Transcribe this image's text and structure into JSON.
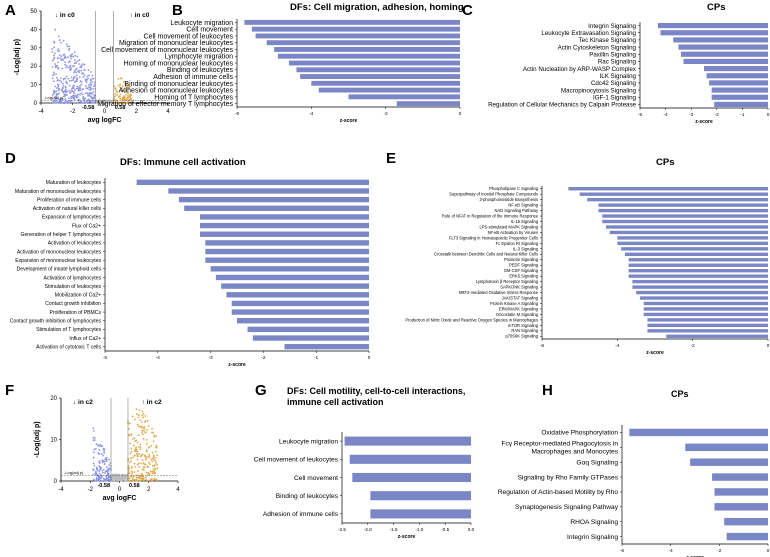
{
  "panel_letters": [
    "A",
    "B",
    "C",
    "D",
    "E",
    "F",
    "G",
    "H"
  ],
  "colors": {
    "bar": "#7b86c6",
    "down": "#8f97e6",
    "up": "#e0a94a",
    "grey": "#bbbbbb"
  },
  "chart_data": [
    {
      "panel": "A",
      "type": "scatter",
      "title": "",
      "xlabel": "avg logFC",
      "ylabel": "-Log(adj p)",
      "xlim": [
        -4,
        4
      ],
      "ylim": [
        0,
        50
      ],
      "xticks": [
        "-4",
        "-2",
        "0",
        "2",
        "4"
      ],
      "yticks": [
        "0",
        "10",
        "20",
        "30",
        "40",
        "50"
      ],
      "down_label": "↓ in c0",
      "up_label": "↑ in c0",
      "vlines": [
        -0.58,
        0.58
      ],
      "vline_labels": [
        "-0.58",
        "0.58"
      ],
      "hline": 1.3,
      "hline_label": "-Log(adj p)",
      "down_seed": 11,
      "up_seed": 23,
      "down_count": 380,
      "up_count": 90,
      "down_xrange": [
        -3.3,
        -0.58
      ],
      "up_xrange": [
        0.58,
        1.7
      ],
      "down_ymax": 42,
      "up_ymax": 14
    },
    {
      "panel": "B",
      "type": "bar",
      "title": "DFs: Cell migration, adhesion, homing",
      "xlabel": "z-score",
      "xlim": [
        -6,
        0
      ],
      "xticks": [
        "-6",
        "-4",
        "-2",
        "0"
      ],
      "categories": [
        "Leukocyte migration",
        "Cell movement",
        "Cell movement of leukocytes",
        "Migration of mononuclear leukocytes",
        "Cell movement of mononuclear leukocytes",
        "Lymphocyte migration",
        "Homing of mononuclear leukocytes",
        "Binding of leukocytes",
        "Adhesion of immune cells",
        "Binding of mononuclear leukocytes",
        "Adhesion of mononuclear leukocytes",
        "Homing of T lymphocytes",
        "Migration of effector memory T lymphocytes"
      ],
      "values": [
        -5.8,
        -5.6,
        -5.5,
        -5.2,
        -5.0,
        -4.9,
        -4.6,
        -4.4,
        -4.3,
        -4.0,
        -3.8,
        -3.0,
        -1.7
      ]
    },
    {
      "panel": "C",
      "type": "bar",
      "title": "CPs",
      "xlabel": "z-score",
      "xlim": [
        -5,
        0
      ],
      "xticks": [
        "-5",
        "-4",
        "-3",
        "-2",
        "-1",
        "0"
      ],
      "categories": [
        "Integrin Signaling",
        "Leukocyte Extravasation Signaling",
        "Tec Kinase Signaling",
        "Actin Cytoskeleton Signaling",
        "Paxillin Signaling",
        "Rac Signaling",
        "Actin Nucleation by ARP-WASP Complex",
        "ILK Signaling",
        "Cdc42 Signaling",
        "Macropinocytosis Signaling",
        "IGF-1 Signaling",
        "Regulation of Cellular Mechanics by Calpain Protease"
      ],
      "values": [
        -4.3,
        -4.2,
        -3.7,
        -3.5,
        -3.4,
        -3.3,
        -2.5,
        -2.4,
        -2.3,
        -2.2,
        -2.2,
        -2.1
      ]
    },
    {
      "panel": "D",
      "type": "bar",
      "title": "DFs: Immune cell activation",
      "xlabel": "z-score",
      "xlim": [
        -5,
        0
      ],
      "xticks": [
        "-5",
        "-4",
        "-3",
        "-2",
        "-1",
        "0"
      ],
      "categories": [
        "Maturation of leukocytes",
        "Maturation of mononuclear leukocytes",
        "Proliferation of immune cells",
        "Activation of natural killer cells",
        "Expansion of lymphocytes",
        "Flux of Ca2+",
        "Generation of helper T lymphocytes",
        "Activation of leukocytes",
        "Activation of mononuclear leukocytes",
        "Expansion of mononuclear leukocytes",
        "Development of innate lymphoid cells",
        "Activation of lymphocytes",
        "Stimulation of leukocytes",
        "Mobilization of Ca2+",
        "Contact growth inhibition",
        "Proliferation of PBMCs",
        "Contact growth inhibition of lymphocytes",
        "Stimulation of T lymphocytes",
        "Influx of Ca2+",
        "Activation of cytotoxic T cells"
      ],
      "values": [
        -4.4,
        -3.8,
        -3.6,
        -3.5,
        -3.2,
        -3.2,
        -3.2,
        -3.1,
        -3.1,
        -3.1,
        -3.0,
        -2.9,
        -2.8,
        -2.7,
        -2.6,
        -2.6,
        -2.5,
        -2.3,
        -2.2,
        -1.6
      ]
    },
    {
      "panel": "E",
      "type": "bar",
      "title": "CPs",
      "xlabel": "z-score",
      "xlim": [
        -6,
        0
      ],
      "xticks": [
        "-6",
        "-4",
        "-2",
        "0"
      ],
      "categories": [
        "Phospholipase C Signaling",
        "Superpathway of Inositol Phosphate Compounds",
        "3-phosphoinositide Biosynthesis",
        "NF-κB Signaling",
        "NAD Signaling Pathway",
        "Role of NFAT in Regulation of the Immune Response",
        "IL-15 Signaling",
        "LPS-stimulated MAPK Signaling",
        "NF-κB Activation by Viruses",
        "FLT3 Signaling in Hematopoietic Progenitor Cells",
        "Fc Epsilon RI Signaling",
        "IL-3 Signaling",
        "Crosstalk between Dendritic Cells and Natural Killer Cells",
        "Prolactin Signaling",
        "PEDF Signaling",
        "GM-CSF Signaling",
        "ERK5 Signaling",
        "Lymphotoxin β Receptor Signaling",
        "SAPK/JNK Signaling",
        "NRF2-mediated Oxidative Stress Response",
        "JAK/STAT Signaling",
        "Protein Kinase A Signaling",
        "ERK/MAPK Signaling",
        "Oncostatin M Signaling",
        "Production of Nitric Oxide and Reactive Oxygen Species in Macrophages",
        "mTOR Signaling",
        "RAN Signaling",
        "p70S6K Signaling"
      ],
      "values": [
        -5.3,
        -5.0,
        -4.8,
        -4.5,
        -4.5,
        -4.4,
        -4.4,
        -4.3,
        -4.2,
        -4.0,
        -4.0,
        -3.9,
        -3.8,
        -3.7,
        -3.7,
        -3.7,
        -3.7,
        -3.6,
        -3.6,
        -3.5,
        -3.4,
        -3.3,
        -3.3,
        -3.3,
        -3.2,
        -3.2,
        -3.2,
        -2.7
      ]
    },
    {
      "panel": "F",
      "type": "scatter",
      "title": "",
      "xlabel": "avg logFC",
      "ylabel": "-Log(adj p)",
      "xlim": [
        -4,
        4
      ],
      "ylim": [
        0,
        20
      ],
      "xticks": [
        "-4",
        "-2",
        "0",
        "2",
        "4"
      ],
      "yticks": [
        "0",
        "10",
        "20"
      ],
      "down_label": "↓ in c2",
      "up_label": "↑ in c2",
      "vlines": [
        -0.58,
        0.58
      ],
      "vline_labels": [
        "-0.58",
        "0.58"
      ],
      "hline": 1.3,
      "hline_label": "-Log(adj p)",
      "down_seed": 37,
      "up_seed": 53,
      "down_count": 150,
      "up_count": 230,
      "down_xrange": [
        -1.8,
        -0.58
      ],
      "up_xrange": [
        0.58,
        2.6
      ],
      "down_ymax": 13,
      "up_ymax": 19
    },
    {
      "panel": "G",
      "type": "bar",
      "title": "DFs: Cell motility, cell-to-cell interactions, immune cell activation",
      "title_lines": [
        "DFs: Cell motility, cell-to-cell interactions,",
        "immune cell activation"
      ],
      "xlabel": "z-score",
      "xlim": [
        -2.5,
        0
      ],
      "xticks": [
        "-2.5",
        "-2.0",
        "-1.5",
        "-1.0",
        "-0.5",
        "0.0"
      ],
      "categories": [
        "Leukocyte migration",
        "Cell movement of leukocytes",
        "Cell movement",
        "Binding of leukocytes",
        "Adhesion of immune cells"
      ],
      "values": [
        -2.45,
        -2.35,
        -2.3,
        -1.95,
        -1.95
      ]
    },
    {
      "panel": "H",
      "type": "bar",
      "title": "CPs",
      "xlabel": "z-score",
      "xlim": [
        -6,
        0
      ],
      "xticks": [
        "-6",
        "-4",
        "-2",
        "0"
      ],
      "categories": [
        "Oxidative Phosphorylation",
        "Fcγ Receptor-mediated Phagocytosis in Macrophages and Monocytes",
        "Gαq Signaling",
        "Signaling by Rho Family GTPases",
        "Regulation of Actin-based Motility by Rho",
        "Synaptogenesis Signaling Pathway",
        "RHOA Signaling",
        "Integrin Signaling"
      ],
      "label_lines": [
        [
          "Oxidative Phosphorylation"
        ],
        [
          "Fcγ Receptor-mediated Phagocytosis in",
          "Macrophages and Monocytes"
        ],
        [
          "Gαq Signaling"
        ],
        [
          "Signaling by Rho Family GTPases"
        ],
        [
          "Regulation of Actin-based Motility by Rho"
        ],
        [
          "Synaptogenesis Signaling Pathway"
        ],
        [
          "RHOA Signaling"
        ],
        [
          "Integrin Signaling"
        ]
      ],
      "values": [
        -5.7,
        -3.4,
        -3.2,
        -2.3,
        -2.2,
        -2.2,
        -1.8,
        -1.7
      ]
    }
  ]
}
